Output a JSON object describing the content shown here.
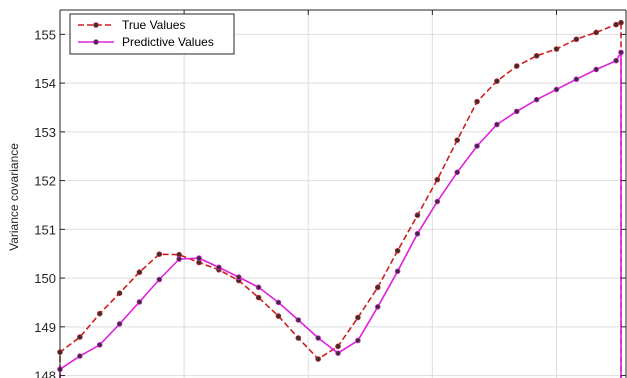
{
  "chart_data": {
    "type": "line",
    "title": "",
    "xlabel": "",
    "ylabel": "Variance covariance",
    "ylim": [
      147.95,
      155.5
    ],
    "xlim": [
      0,
      57
    ],
    "yticks": [
      148,
      149,
      150,
      151,
      152,
      153,
      154,
      155
    ],
    "xgrid": [
      0,
      12.5,
      25,
      37.5,
      50
    ],
    "grid": true,
    "legend_position": "top-left",
    "series": [
      {
        "name": "True Values",
        "color": "#cc1f1f",
        "line_style": "dashed",
        "marker": "dot",
        "x": [
          0,
          2,
          4,
          6,
          8,
          10,
          12,
          14,
          16,
          18,
          20,
          22,
          24,
          26,
          28,
          30,
          32,
          34,
          36,
          38,
          40,
          42,
          44,
          46,
          48,
          50,
          52,
          54,
          56,
          56.5
        ],
        "y": [
          148.48,
          148.79,
          149.27,
          149.69,
          150.12,
          150.49,
          150.48,
          150.32,
          150.17,
          149.95,
          149.6,
          149.22,
          148.77,
          148.34,
          148.6,
          149.19,
          149.81,
          150.56,
          151.29,
          152.02,
          152.83,
          153.62,
          154.04,
          154.35,
          154.56,
          154.7,
          154.9,
          155.04,
          155.2,
          155.24
        ]
      },
      {
        "name": "Predictive Values",
        "color": "#dd22dd",
        "line_style": "solid",
        "marker": "dot",
        "x": [
          0,
          2,
          4,
          6,
          8,
          10,
          12,
          14,
          16,
          18,
          20,
          22,
          24,
          26,
          28,
          30,
          32,
          34,
          36,
          38,
          40,
          42,
          44,
          46,
          48,
          50,
          52,
          54,
          56,
          56.5
        ],
        "y": [
          148.13,
          148.4,
          148.63,
          149.06,
          149.51,
          149.97,
          150.39,
          150.41,
          150.22,
          150.02,
          149.81,
          149.5,
          149.14,
          148.77,
          148.46,
          148.72,
          149.41,
          150.14,
          150.91,
          151.57,
          152.17,
          152.71,
          153.15,
          153.42,
          153.66,
          153.87,
          154.08,
          154.28,
          154.46,
          154.63
        ]
      }
    ]
  }
}
